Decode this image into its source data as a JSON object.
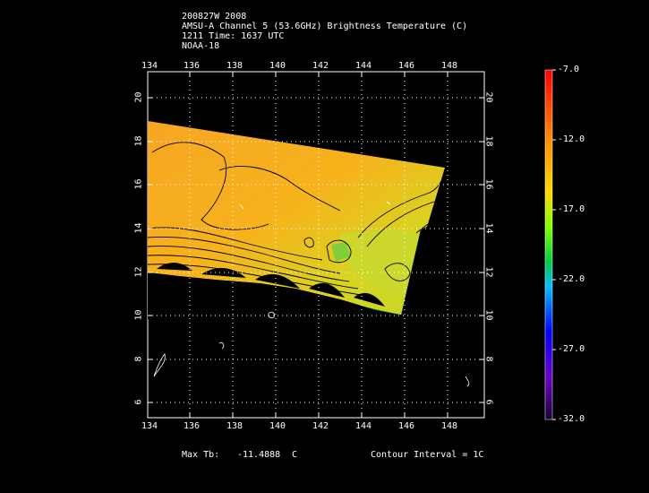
{
  "header": {
    "storm": "200827W 2008",
    "product": "AMSU-A Channel 5 (53.6GHz) Brightness Temperature (C)",
    "time": "1211 Time: 1637 UTC",
    "satellite": "NOAA-18"
  },
  "map": {
    "lon_ticks": [
      "134",
      "136",
      "138",
      "140",
      "142",
      "144",
      "146",
      "148"
    ],
    "lat_ticks": [
      "20",
      "18",
      "16",
      "14",
      "12",
      "10",
      "8",
      "6"
    ]
  },
  "colorbar": {
    "ticks": [
      "-7.0",
      "-12.0",
      "-17.0",
      "-22.0",
      "-27.0",
      "-32.0"
    ],
    "colors": [
      "#ff0000",
      "#ff8c00",
      "#ffd700",
      "#7fff00",
      "#00cc44",
      "#00bfff",
      "#0000ff",
      "#6a00c8",
      "#1a0033"
    ]
  },
  "footer": {
    "max_tb_label": "Max Tb:",
    "max_tb_value": "-11.4888",
    "max_tb_unit": "C",
    "contour": "Contour Interval = 1C"
  }
}
